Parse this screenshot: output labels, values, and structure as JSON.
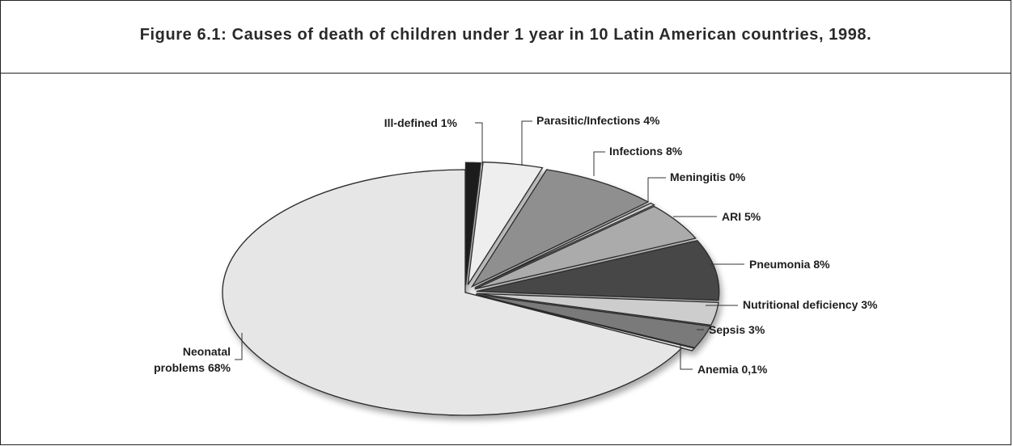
{
  "chart_data": {
    "type": "pie",
    "title": "Figure 6.1: Causes of death of children under 1 year in 10 Latin American countries, 1998.",
    "slices": [
      {
        "label": "Ill-defined 1%",
        "value": 1,
        "color": "#1a1a1a"
      },
      {
        "label": "Parasitic/Infections 4%",
        "value": 4,
        "color": "#eeeeee"
      },
      {
        "label": "Infections 8%",
        "value": 8,
        "color": "#8f8f8f"
      },
      {
        "label": "Meningitis 0%",
        "value": 0,
        "color": "#cfcfcf"
      },
      {
        "label": "ARI 5%",
        "value": 5,
        "color": "#ababab"
      },
      {
        "label": "Pneumonia 8%",
        "value": 8,
        "color": "#464646"
      },
      {
        "label": "Nutritional deficiency 3%",
        "value": 3,
        "color": "#cdcdcd"
      },
      {
        "label": "Sepsis 3%",
        "value": 3,
        "color": "#7a7a7a"
      },
      {
        "label": "Anemia 0,1%",
        "value": 0.1,
        "color": "#e0e0e0"
      },
      {
        "label": "Neonatal problems 68%",
        "label_lines": [
          "Neonatal",
          "problems 68%"
        ],
        "value": 68,
        "color": "#e6e6e6"
      }
    ]
  }
}
